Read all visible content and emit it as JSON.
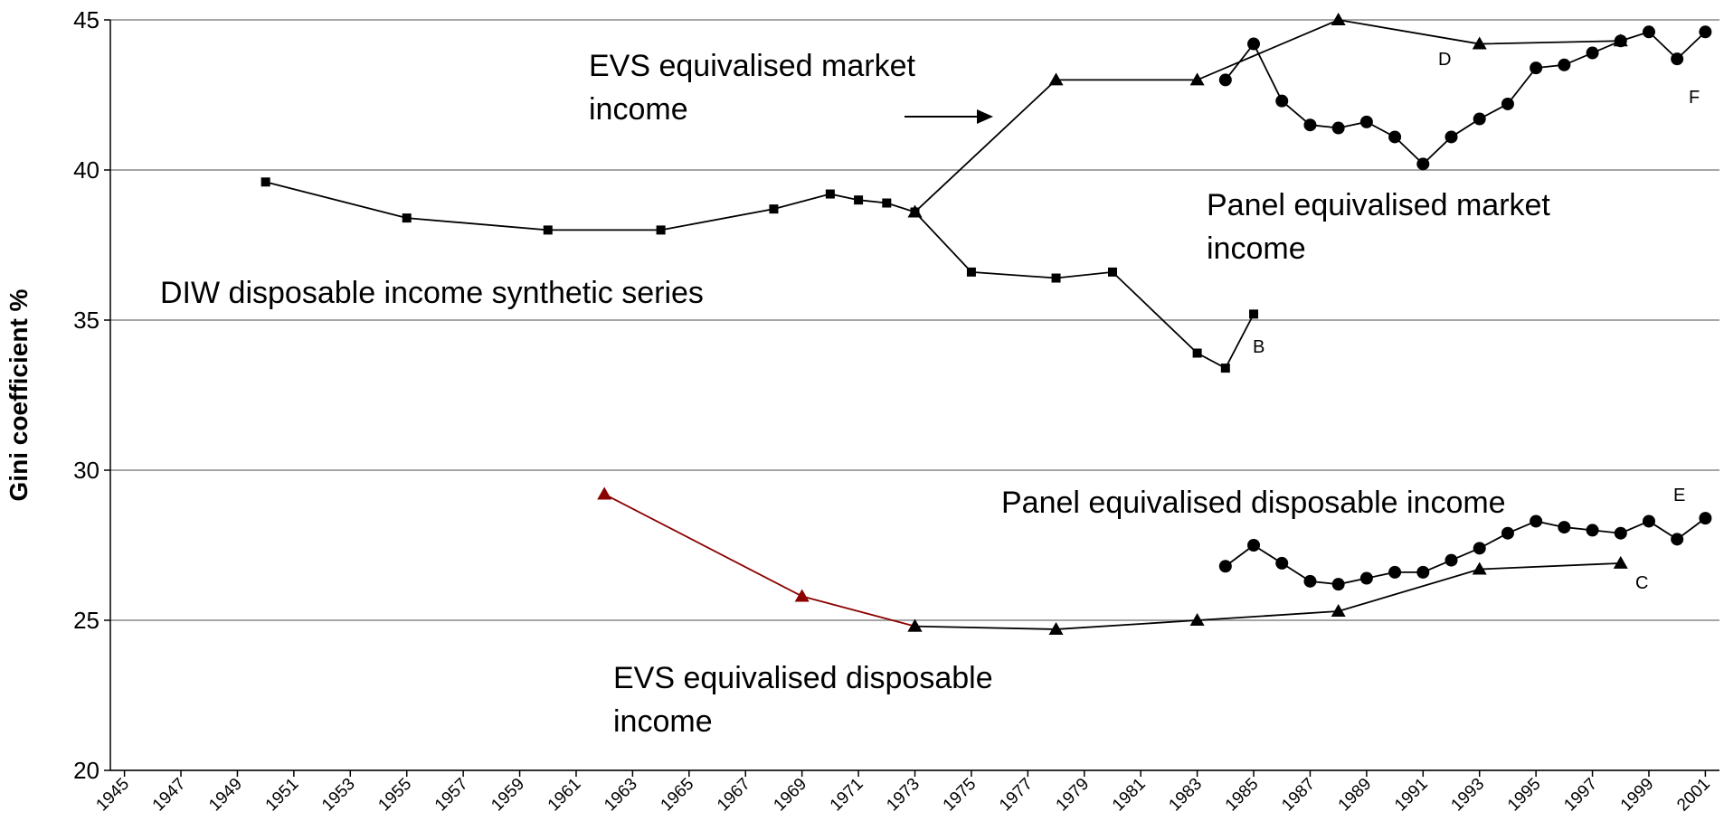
{
  "chart_data": {
    "type": "line",
    "y_label": "Gini coefficient %",
    "xlim": [
      1944.5,
      2001.5
    ],
    "xticks": [
      1945,
      1947,
      1949,
      1951,
      1953,
      1955,
      1957,
      1959,
      1961,
      1963,
      1965,
      1967,
      1969,
      1971,
      1973,
      1975,
      1977,
      1979,
      1981,
      1983,
      1985,
      1987,
      1989,
      1991,
      1993,
      1995,
      1997,
      1999,
      2001
    ],
    "ylim": [
      20,
      45
    ],
    "yticks": [
      20,
      25,
      30,
      35,
      40,
      45
    ],
    "grid": true,
    "series": [
      {
        "marker": "square",
        "color": "#000000",
        "x": [
          1950,
          1955,
          1960,
          1964,
          1968,
          1970,
          1971,
          1972,
          1973,
          1975,
          1978,
          1980,
          1983,
          1984,
          1985
        ],
        "values": [
          39.6,
          38.4,
          38.0,
          38.0,
          38.7,
          39.2,
          39.0,
          38.9,
          38.6,
          36.6,
          36.4,
          36.6,
          33.9,
          33.4,
          35.2
        ]
      },
      {
        "marker": "triangle",
        "color": "#000000",
        "x": [
          1973,
          1978,
          1983,
          1988,
          1993,
          1998
        ],
        "values": [
          38.6,
          43.0,
          43.0,
          45.0,
          44.2,
          44.3
        ]
      },
      {
        "marker": "circle",
        "color": "#000000",
        "x": [
          1984,
          1985,
          1986,
          1987,
          1988,
          1989,
          1990,
          1991,
          1992,
          1993,
          1994,
          1995,
          1996,
          1997,
          1998,
          1999,
          2000,
          2001
        ],
        "values": [
          43.0,
          44.2,
          42.3,
          41.5,
          41.4,
          41.6,
          41.1,
          40.2,
          41.1,
          41.7,
          42.2,
          43.4,
          43.5,
          43.9,
          44.3,
          44.6,
          43.7,
          44.6
        ]
      },
      {
        "marker": "circle",
        "color": "#000000",
        "x": [
          1984,
          1985,
          1986,
          1987,
          1988,
          1989,
          1990,
          1991,
          1992,
          1993,
          1994,
          1995,
          1996,
          1997,
          1998,
          1999,
          2000,
          2001
        ],
        "values": [
          26.8,
          27.5,
          26.9,
          26.3,
          26.2,
          26.4,
          26.6,
          26.6,
          27.0,
          27.4,
          27.9,
          28.3,
          28.1,
          28.0,
          27.9,
          28.3,
          27.7,
          28.4
        ]
      },
      {
        "marker": "triangle",
        "color": "#8b0000",
        "x": [
          1962,
          1969,
          1973
        ],
        "values": [
          29.2,
          25.8,
          24.8
        ]
      },
      {
        "marker": "triangle",
        "color": "#000000",
        "x": [
          1973,
          1978,
          1983,
          1988,
          1993,
          1998
        ],
        "values": [
          24.8,
          24.7,
          25.0,
          25.3,
          26.7,
          26.9
        ]
      }
    ],
    "annotations": [
      {
        "lines": [
          "EVS equivalised market",
          "income"
        ]
      },
      {
        "lines": [
          "Panel equivalised market",
          "income"
        ]
      },
      {
        "lines": [
          "DIW disposable income synthetic series"
        ]
      },
      {
        "lines": [
          "Panel equivalised disposable income"
        ]
      },
      {
        "lines": [
          "EVS equivalised disposable",
          "income"
        ]
      },
      {
        "lines": [
          "B"
        ]
      },
      {
        "lines": [
          "C"
        ]
      },
      {
        "lines": [
          "D"
        ]
      },
      {
        "lines": [
          "E"
        ]
      },
      {
        "lines": [
          "F"
        ]
      }
    ]
  }
}
